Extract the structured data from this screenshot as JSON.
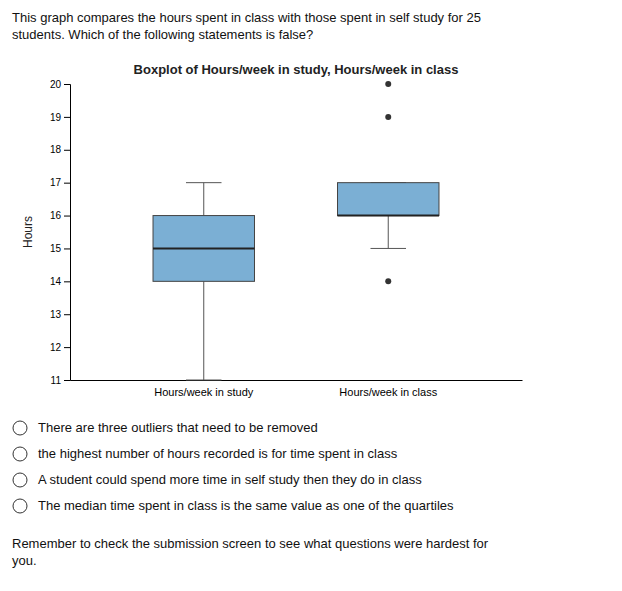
{
  "chart_data": {
    "type": "box",
    "title": "Boxplot of Hours/week in study, Hours/week in class",
    "ylabel": "Hours",
    "categories": [
      "Hours/week in study",
      "Hours/week in class"
    ],
    "boxes": [
      {
        "q1": 14.0,
        "median": 15.0,
        "q3": 16.0,
        "whisker_low": 11.0,
        "whisker_high": 17.0,
        "outliers": []
      },
      {
        "q1": 16.0,
        "median": 16.0,
        "q3": 17.0,
        "whisker_low": 15.0,
        "whisker_high": 17.0,
        "outliers": [
          14.0,
          19.0,
          20.0
        ]
      }
    ],
    "color": "#7bafd4",
    "ylim": [
      11,
      20
    ],
    "yticks": [
      11,
      12,
      13,
      14,
      15,
      16,
      17,
      18,
      19,
      20
    ],
    "grid": false
  },
  "header_text": "This graph compares the hours spent in class with those spent in self study for 25\nstudents. Which of the following statements is false?",
  "options": [
    "There are three outliers that need to be removed",
    "the highest number of hours recorded is for time spent in class",
    "A student could spend more time in self study then they do in class",
    "The median time spent in class is the same value as one of the quartiles"
  ],
  "footer_text": "Remember to check the submission screen to see what questions were hardest for\nyou."
}
